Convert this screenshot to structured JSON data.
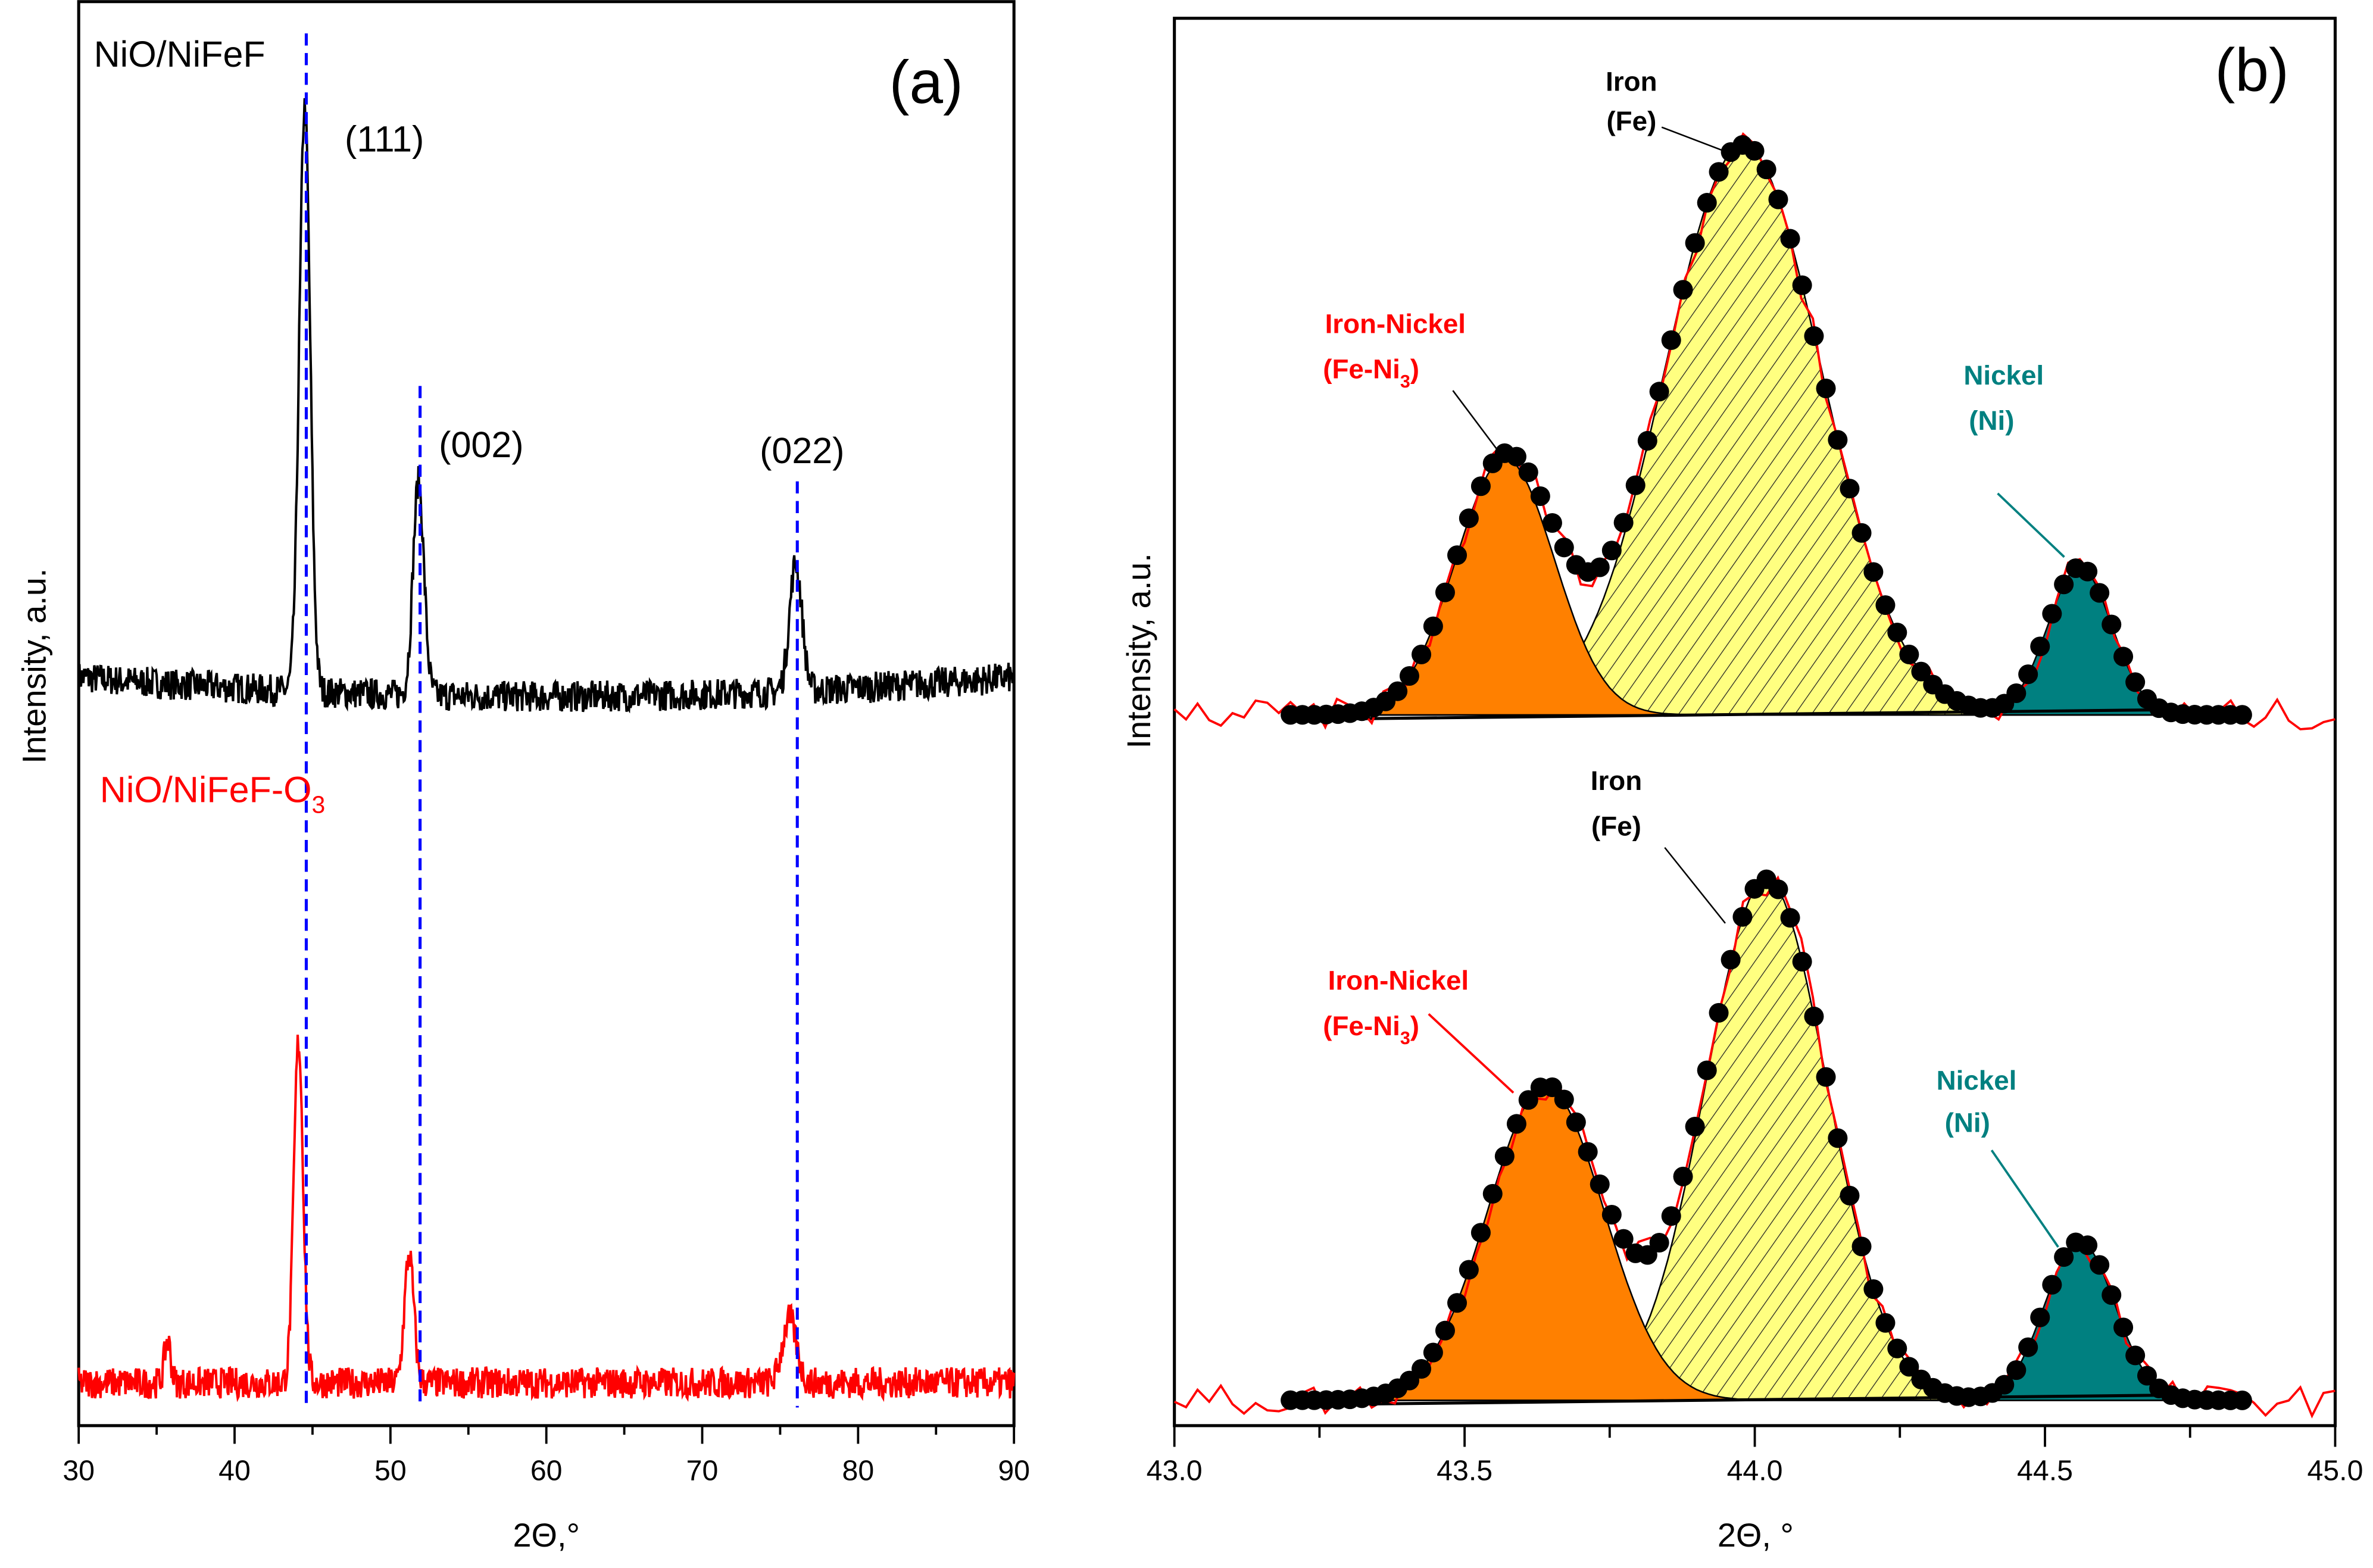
{
  "chart_data": [
    {
      "type": "line",
      "panel_label": "(a)",
      "xlabel": "2Θ,°",
      "ylabel": "Intensity, a.u.",
      "xlim": [
        30,
        90
      ],
      "ylim": [
        0,
        100
      ],
      "xticks": [
        "30",
        "40",
        "50",
        "60",
        "70",
        "80",
        "90"
      ],
      "series": [
        {
          "name": "NiO/NiFeF",
          "color": "#000000",
          "baseline": 52,
          "peaks": [
            {
              "x": 44.5,
              "height": 41,
              "width": 0.35
            },
            {
              "x": 51.8,
              "height": 15,
              "width": 0.35
            },
            {
              "x": 76.0,
              "height": 9,
              "width": 0.4
            }
          ]
        },
        {
          "name": "NiO/NiFeF-O₃",
          "name_main": "NiO/NiFeF-O",
          "name_sub": "3",
          "color": "#ff0000",
          "baseline": 3,
          "peaks": [
            {
              "x": 44.1,
              "height": 24,
              "width": 0.3
            },
            {
              "x": 51.2,
              "height": 9,
              "width": 0.3
            },
            {
              "x": 75.6,
              "height": 4.5,
              "width": 0.45
            },
            {
              "x": 35.7,
              "height": 3,
              "width": 0.2
            }
          ]
        }
      ],
      "reference_lines": [
        44.6,
        51.9,
        76.1
      ],
      "reference_color": "#0000ff",
      "annotations": [
        {
          "text": "(111)",
          "x": 44.5
        },
        {
          "text": "(002)",
          "x": 51.8
        },
        {
          "text": "(022)",
          "x": 76.0
        }
      ]
    },
    {
      "type": "area",
      "panel_label": "(b)",
      "xlabel": "2Θ, °",
      "ylabel": "Intensity, a.u.",
      "xlim": [
        43.0,
        45.0
      ],
      "ylim": [
        0,
        100
      ],
      "xticks": [
        "43.0",
        "43.5",
        "44.0",
        "44.5",
        "45.0"
      ],
      "fit_range": [
        43.2,
        44.85
      ],
      "colors": {
        "iron_nickel": "#ff8000",
        "iron": "#ffff80",
        "nickel": "#008080",
        "fit": "#000000",
        "data": "#ff0000"
      },
      "subplots": [
        {
          "name": "upper",
          "baseline": 50.5,
          "components": [
            {
              "label_line1": "Iron-Nickel",
              "label_line2_main": "(Fe-Ni",
              "label_line2_sub": "3",
              "label_line2_end": ")",
              "center": 43.57,
              "amplitude": 18.2,
              "sigma": 0.085
            },
            {
              "label_line1": "Iron",
              "label_line2": "(Fe)",
              "center": 43.98,
              "amplitude": 40.5,
              "sigma": 0.135
            },
            {
              "label_line1": "Nickel",
              "label_line2": "(Ni)",
              "center": 44.56,
              "amplitude": 10.5,
              "sigma": 0.055
            }
          ]
        },
        {
          "name": "lower",
          "baseline": 1.8,
          "components": [
            {
              "label_line1": "Iron-Nickel",
              "label_line2_main": "(Fe-Ni",
              "label_line2_sub": "3",
              "label_line2_end": ")",
              "center": 43.64,
              "amplitude": 22.3,
              "sigma": 0.1
            },
            {
              "label_line1": "Iron",
              "label_line2": "(Fe)",
              "center": 44.02,
              "amplitude": 37,
              "sigma": 0.105
            },
            {
              "label_line1": "Nickel",
              "label_line2": "(Ni)",
              "center": 44.56,
              "amplitude": 11.3,
              "sigma": 0.06
            }
          ]
        }
      ]
    }
  ]
}
